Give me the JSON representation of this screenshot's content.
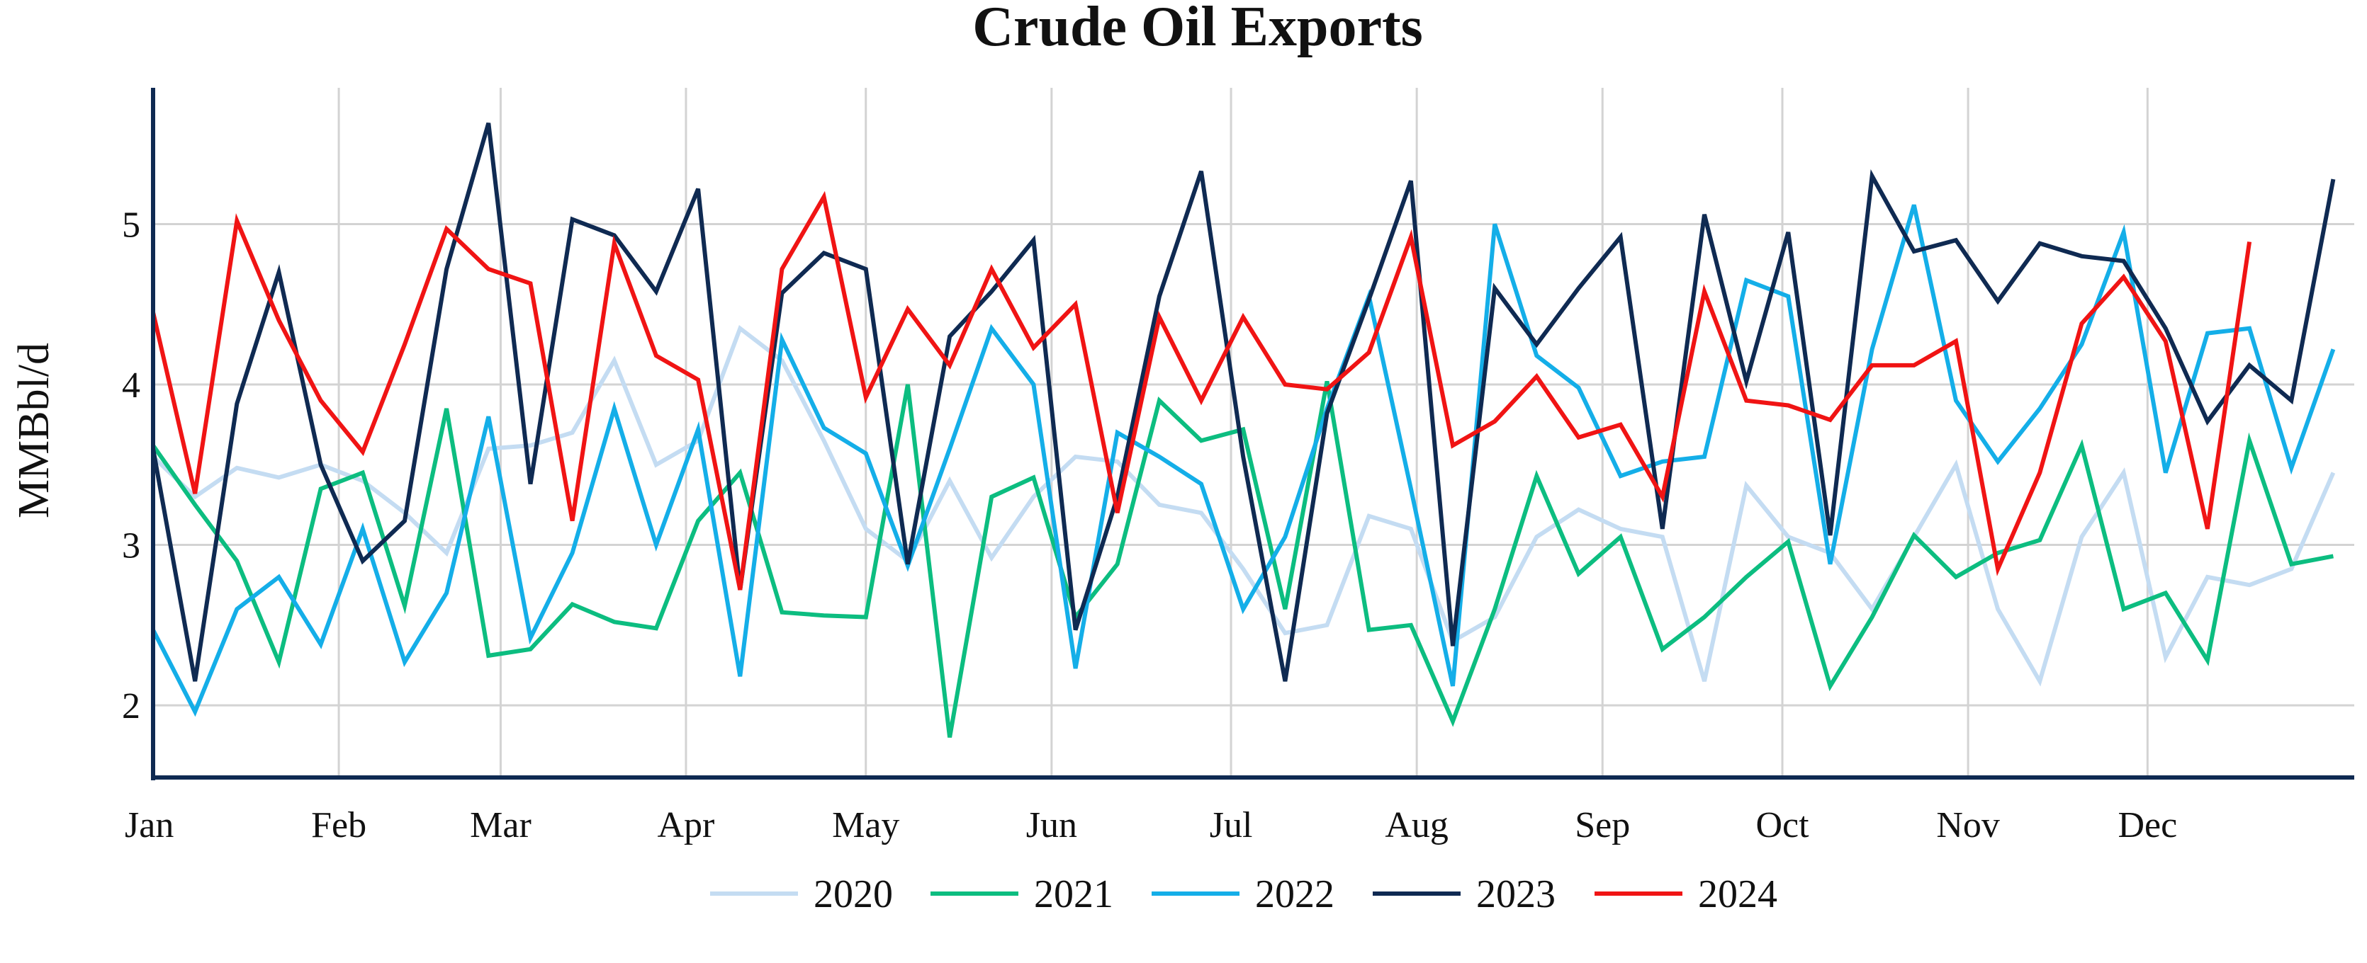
{
  "chart_data": {
    "type": "line",
    "title": "Crude Oil Exports",
    "ylabel": "MMBbl/d",
    "xlabel": "",
    "x_tick_labels": [
      "Jan",
      "Feb",
      "Mar",
      "Apr",
      "May",
      "Jun",
      "Jul",
      "Aug",
      "Sep",
      "Oct",
      "Nov",
      "Dec"
    ],
    "y_tick_values": [
      2,
      3,
      4,
      5
    ],
    "ylim": [
      1.55,
      5.85
    ],
    "x_unit": "week of year",
    "xlim": [
      1,
      53.5
    ],
    "grid": true,
    "legend_position": "bottom",
    "series": [
      {
        "name": "2020",
        "color": "#c4dcf2",
        "x": [
          1,
          2,
          3,
          4,
          5,
          6,
          7,
          8,
          9,
          10,
          11,
          12,
          13,
          14,
          15,
          16,
          17,
          18,
          19,
          20,
          21,
          22,
          23,
          24,
          25,
          26,
          27,
          28,
          29,
          30,
          31,
          32,
          33,
          34,
          35,
          36,
          37,
          38,
          39,
          40,
          41,
          42,
          43,
          44,
          45,
          46,
          47,
          48,
          49,
          50,
          51,
          52,
          53
        ],
        "values": [
          3.55,
          3.3,
          3.48,
          3.42,
          3.5,
          3.4,
          3.2,
          2.95,
          3.6,
          3.62,
          3.7,
          4.15,
          3.5,
          3.65,
          4.35,
          4.15,
          3.65,
          3.1,
          2.9,
          3.4,
          2.92,
          3.3,
          3.55,
          3.52,
          3.25,
          3.2,
          2.85,
          2.45,
          2.5,
          3.18,
          3.1,
          2.4,
          2.55,
          3.05,
          3.22,
          3.1,
          3.05,
          2.15,
          3.37,
          3.05,
          2.95,
          2.6,
          3.05,
          3.5,
          2.6,
          2.15,
          3.05,
          3.45,
          2.3,
          2.8,
          2.75,
          2.85,
          3.45
        ]
      },
      {
        "name": "2021",
        "color": "#0cbd80",
        "x": [
          1,
          2,
          3,
          4,
          5,
          6,
          7,
          8,
          9,
          10,
          11,
          12,
          13,
          14,
          15,
          16,
          17,
          18,
          19,
          20,
          21,
          22,
          23,
          24,
          25,
          26,
          27,
          28,
          29,
          30,
          31,
          32,
          33,
          34,
          35,
          36,
          37,
          38,
          39,
          40,
          41,
          42,
          43,
          44,
          45,
          46,
          47,
          48,
          49,
          50,
          51,
          52,
          53
        ],
        "values": [
          3.62,
          3.25,
          2.9,
          2.27,
          3.35,
          3.45,
          2.62,
          3.85,
          2.31,
          2.35,
          2.63,
          2.52,
          2.48,
          3.15,
          3.45,
          2.58,
          2.56,
          2.55,
          4.0,
          1.8,
          3.3,
          3.42,
          2.55,
          2.88,
          3.9,
          3.65,
          3.72,
          2.6,
          4.02,
          2.47,
          2.5,
          1.9,
          2.6,
          3.43,
          2.82,
          3.05,
          2.35,
          2.55,
          2.8,
          3.02,
          2.12,
          2.55,
          3.06,
          2.8,
          2.95,
          3.03,
          3.62,
          2.6,
          2.7,
          2.28,
          3.65,
          2.88,
          2.93
        ]
      },
      {
        "name": "2022",
        "color": "#14aee8",
        "x": [
          1,
          2,
          3,
          4,
          5,
          6,
          7,
          8,
          9,
          10,
          11,
          12,
          13,
          14,
          15,
          16,
          17,
          18,
          19,
          20,
          21,
          22,
          23,
          24,
          25,
          26,
          27,
          28,
          29,
          30,
          31,
          32,
          33,
          34,
          35,
          36,
          37,
          38,
          39,
          40,
          41,
          42,
          43,
          44,
          45,
          46,
          47,
          48,
          49,
          50,
          51,
          52,
          53
        ],
        "values": [
          2.47,
          1.96,
          2.6,
          2.8,
          2.38,
          3.1,
          2.27,
          2.7,
          3.8,
          2.42,
          2.95,
          3.85,
          3.0,
          3.72,
          2.18,
          4.28,
          3.73,
          3.57,
          2.87,
          3.6,
          4.35,
          4.0,
          2.23,
          3.7,
          3.55,
          3.38,
          2.6,
          3.05,
          3.85,
          4.55,
          3.35,
          2.12,
          5.0,
          4.18,
          3.98,
          3.43,
          3.52,
          3.55,
          4.65,
          4.55,
          2.88,
          4.22,
          5.12,
          3.9,
          3.52,
          3.85,
          4.25,
          4.95,
          3.45,
          4.32,
          4.35,
          3.48,
          4.22
        ]
      },
      {
        "name": "2023",
        "color": "#0f2a52",
        "x": [
          1,
          2,
          3,
          4,
          5,
          6,
          7,
          8,
          9,
          10,
          11,
          12,
          13,
          14,
          15,
          16,
          17,
          18,
          19,
          20,
          21,
          22,
          23,
          24,
          25,
          26,
          27,
          28,
          29,
          30,
          31,
          32,
          33,
          34,
          35,
          36,
          37,
          38,
          39,
          40,
          41,
          42,
          43,
          44,
          45,
          46,
          47,
          48,
          49,
          50,
          51,
          52,
          53
        ],
        "values": [
          3.6,
          2.15,
          3.88,
          4.7,
          3.5,
          2.9,
          3.15,
          4.72,
          5.63,
          3.38,
          5.03,
          4.93,
          4.58,
          5.22,
          2.72,
          4.57,
          4.82,
          4.72,
          2.88,
          4.3,
          4.58,
          4.9,
          2.47,
          3.3,
          4.55,
          5.33,
          3.55,
          2.15,
          3.82,
          4.53,
          5.27,
          2.37,
          4.6,
          4.25,
          4.6,
          4.92,
          3.1,
          5.06,
          4.02,
          4.95,
          3.06,
          5.3,
          4.83,
          4.9,
          4.52,
          4.88,
          4.8,
          4.77,
          4.35,
          3.77,
          4.12,
          3.9,
          5.28
        ]
      },
      {
        "name": "2024",
        "color": "#f01414",
        "x": [
          1,
          2,
          3,
          4,
          5,
          6,
          7,
          8,
          9,
          10,
          11,
          12,
          13,
          14,
          15,
          16,
          17,
          18,
          19,
          20,
          21,
          22,
          23,
          24,
          25,
          26,
          27,
          28,
          29,
          30,
          31,
          32,
          33,
          34,
          35,
          36,
          37,
          38,
          39,
          40,
          41,
          42,
          43,
          44,
          45,
          46,
          47,
          48,
          49,
          50,
          51
        ],
        "values": [
          4.45,
          3.32,
          5.02,
          4.4,
          3.9,
          3.58,
          4.25,
          4.97,
          4.72,
          4.63,
          3.15,
          4.88,
          4.18,
          4.03,
          2.72,
          4.72,
          5.17,
          3.92,
          4.47,
          4.12,
          4.72,
          4.23,
          4.5,
          3.2,
          4.42,
          3.9,
          4.42,
          4.0,
          3.97,
          4.2,
          4.92,
          3.62,
          3.77,
          4.05,
          3.67,
          3.75,
          3.3,
          4.58,
          3.9,
          3.87,
          3.78,
          4.12,
          4.12,
          4.27,
          2.85,
          3.45,
          4.38,
          4.67,
          4.27,
          3.1,
          4.89
        ]
      }
    ]
  }
}
